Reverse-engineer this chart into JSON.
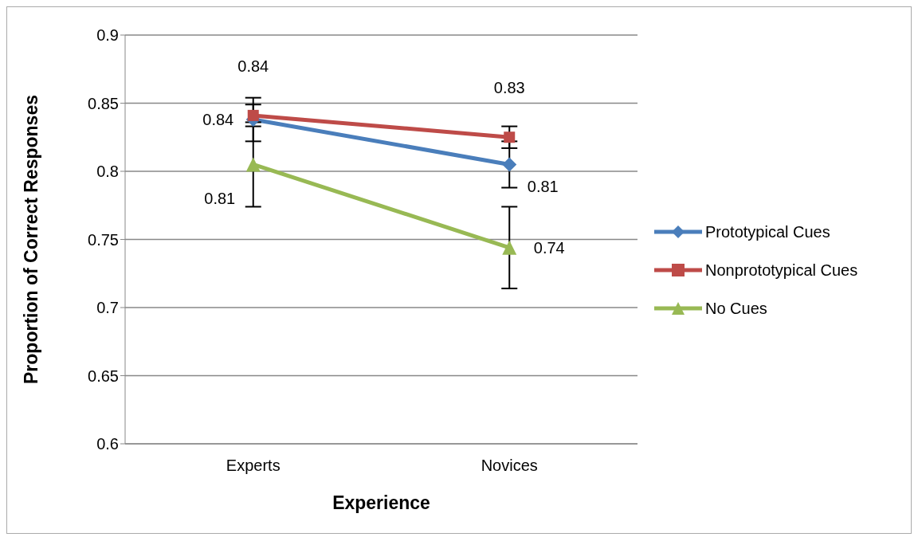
{
  "chart_data": {
    "type": "line",
    "xlabel": "Experience",
    "ylabel": "Proportion of Correct Responses",
    "categories": [
      "Experts",
      "Novices"
    ],
    "series": [
      {
        "name": "Prototypical Cues",
        "color": "#4a7ebb",
        "marker": "diamond",
        "values": [
          0.838,
          0.805
        ],
        "errors": [
          0.016,
          0.017
        ],
        "value_labels": [
          "0.84",
          "0.81"
        ]
      },
      {
        "name": "Nonprototypical Cues",
        "color": "#be4b48",
        "marker": "square",
        "values": [
          0.841,
          0.825
        ],
        "errors": [
          0.008,
          0.008
        ],
        "value_labels": [
          "0.84",
          "0.83"
        ]
      },
      {
        "name": "No Cues",
        "color": "#98b954",
        "marker": "triangle",
        "values": [
          0.805,
          0.744
        ],
        "errors": [
          0.031,
          0.03
        ],
        "value_labels": [
          "0.81",
          "0.74"
        ]
      }
    ],
    "ylim": [
      0.6,
      0.9
    ],
    "yticks": [
      0.6,
      0.65,
      0.7,
      0.75,
      0.8,
      0.85,
      0.9
    ],
    "grid": "y",
    "legend": "right"
  }
}
